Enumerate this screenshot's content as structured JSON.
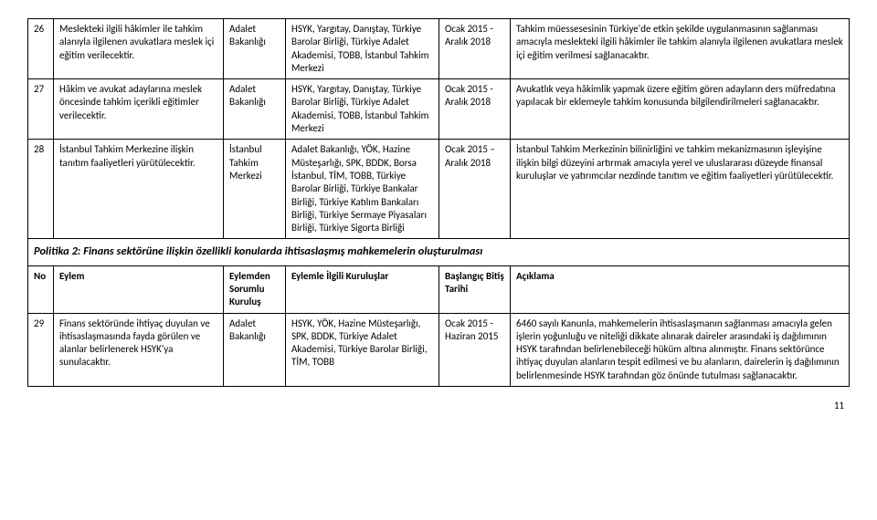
{
  "rows_top": [
    {
      "no": "26",
      "eylem": "Meslekteki ilgili hâkimler ile tahkim alanıyla ilgilenen avukatlara meslek içi eğitim verilecektir.",
      "sorumlu": "Adalet Bakanlığı",
      "kurulus": "HSYK, Yargıtay, Danıştay, Türkiye Barolar Birliği, Türkiye Adalet Akademisi, TOBB, İstanbul Tahkim Merkezi",
      "tarih": "Ocak 2015 - Aralık 2018",
      "aciklama": "Tahkim müessesesinin Türkiye'de etkin şekilde uygulanmasının sağlanması amacıyla meslekteki ilgili hâkimler ile tahkim alanıyla ilgilenen avukatlara meslek içi eğitim verilmesi sağlanacaktır."
    },
    {
      "no": "27",
      "eylem": "Hâkim ve avukat adaylarına meslek öncesinde tahkim içerikli eğitimler verilecektir.",
      "sorumlu": "Adalet Bakanlığı",
      "kurulus": "HSYK, Yargıtay, Danıştay, Türkiye Barolar Birliği, Türkiye Adalet Akademisi, TOBB, İstanbul Tahkim Merkezi",
      "tarih": "Ocak 2015 - Aralık 2018",
      "aciklama": "Avukatlık veya hâkimlik yapmak üzere eğitim gören adayların ders müfredatına yapılacak bir eklemeyle tahkim konusunda bilgilendirilmeleri sağlanacaktır."
    },
    {
      "no": "28",
      "eylem": "İstanbul Tahkim Merkezine ilişkin tanıtım faaliyetleri yürütülecektir.",
      "sorumlu": "İstanbul Tahkim Merkezi",
      "kurulus": "Adalet Bakanlığı, YÖK, Hazine Müsteşarlığı, SPK, BDDK, Borsa İstanbul, TİM, TOBB, Türkiye Barolar Birliği, Türkiye Bankalar Birliği, Türkiye Katılım Bankaları Birliği, Türkiye Sermaye Piyasaları Birliği, Türkiye Sigorta Birliği",
      "tarih": "Ocak 2015 – Aralık 2018",
      "aciklama": "İstanbul Tahkim Merkezinin bilinirliğini ve tahkim mekanizmasının işleyişine ilişkin bilgi düzeyini artırmak amacıyla yerel ve uluslararası düzeyde finansal kuruluşlar ve yatırımcılar nezdinde tanıtım ve eğitim faaliyetleri yürütülecektir."
    }
  ],
  "section_title": "Politika 2: Finans sektörüne ilişkin özellikli konularda ihtisaslaşmış mahkemelerin oluşturulması",
  "headers": {
    "no": "No",
    "eylem": "Eylem",
    "sorumlu": "Eylemden Sorumlu Kuruluş",
    "kurulus": "Eylemle İlgili Kuruluşlar",
    "tarih": "Başlangıç Bitiş Tarihi",
    "aciklama": "Açıklama"
  },
  "rows_bottom": [
    {
      "no": "29",
      "eylem": "Finans sektöründe ihtiyaç duyulan ve ihtisaslaşmasında fayda görülen ve alanlar belirlenerek HSYK'ya sunulacaktır.",
      "sorumlu": "Adalet Bakanlığı",
      "kurulus": "HSYK, YÖK, Hazine Müsteşarlığı, SPK, BDDK, Türkiye Adalet Akademisi, Türkiye Barolar Birliği, TİM, TOBB",
      "tarih": "Ocak 2015 - Haziran 2015",
      "aciklama": "6460 sayılı Kanunla, mahkemelerin ihtisaslaşmanın sağlanması amacıyla gelen işlerin yoğunluğu ve niteliği dikkate alınarak daireler arasındaki iş dağılımının HSYK tarafından belirlenebileceği hüküm altına alınmıştır. Finans sektörünce ihtiyaç duyulan alanların tespit edilmesi ve bu alanların, dairelerin iş dağılımının belirlenmesinde HSYK tarafından göz önünde tutulması sağlanacaktır."
    }
  ],
  "page_number": "11"
}
